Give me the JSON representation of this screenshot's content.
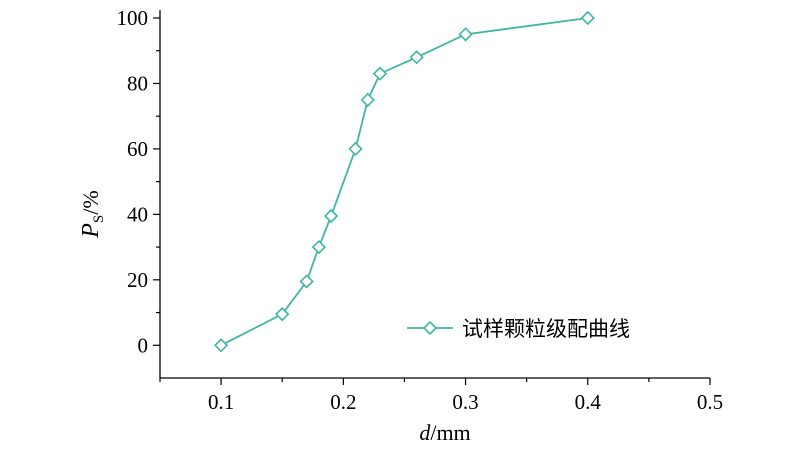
{
  "chart_data": {
    "type": "line",
    "xlabel": {
      "var": "d",
      "unit": "/mm"
    },
    "ylabel": {
      "var": "P",
      "sub": "S",
      "unit": "/%"
    },
    "xlim": [
      0.05,
      0.5
    ],
    "ylim": [
      -10,
      100
    ],
    "xticks": [
      0.1,
      0.2,
      0.3,
      0.4,
      0.5
    ],
    "xtick_labels": [
      "0.1",
      "0.2",
      "0.3",
      "0.4",
      "0.5"
    ],
    "yticks": [
      0,
      20,
      40,
      60,
      80,
      100
    ],
    "ytick_labels": [
      "0",
      "20",
      "40",
      "60",
      "80",
      "100"
    ],
    "grid": false,
    "legend_position": "bottom-right",
    "series": [
      {
        "name": "试样颗粒级配曲线",
        "color": "#3fb5a6",
        "marker": "diamond",
        "x": [
          0.1,
          0.15,
          0.17,
          0.18,
          0.19,
          0.21,
          0.22,
          0.23,
          0.26,
          0.3,
          0.4
        ],
        "y": [
          0,
          9.5,
          19.5,
          30,
          39.5,
          60,
          75,
          83,
          88,
          95,
          100
        ]
      }
    ]
  }
}
